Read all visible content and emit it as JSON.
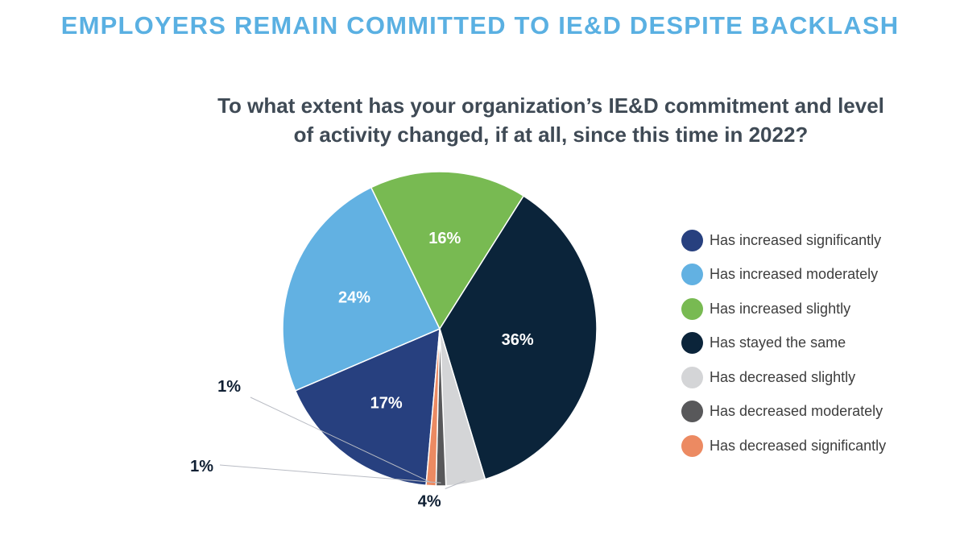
{
  "page": {
    "headline": "EMPLOYERS REMAIN COMMITTED TO IE&D DESPITE BACKLASH"
  },
  "chart_data": {
    "type": "pie",
    "title": "To what extent has your organization’s IE&D commitment and level of activity changed, if at all, since this time in 2022?",
    "title_lines": [
      "To what extent has your organization’s IE&D commitment and level",
      "of activity changed, if at all, since this time in 2022?"
    ],
    "legend_position": "right",
    "slices": [
      {
        "label": "Has increased significantly",
        "value": 17,
        "value_label": "17%",
        "color": "#27407f"
      },
      {
        "label": "Has increased moderately",
        "value": 24,
        "value_label": "24%",
        "color": "#62b1e2"
      },
      {
        "label": "Has increased slightly",
        "value": 16,
        "value_label": "16%",
        "color": "#78ba52"
      },
      {
        "label": "Has stayed the same",
        "value": 36,
        "value_label": "36%",
        "color": "#0b243a"
      },
      {
        "label": "Has decreased slightly",
        "value": 4,
        "value_label": "4%",
        "color": "#d4d5d7"
      },
      {
        "label": "Has decreased moderately",
        "value": 1,
        "value_label": "1%",
        "color": "#58585a"
      },
      {
        "label": "Has decreased significantly",
        "value": 1,
        "value_label": "1%",
        "color": "#ec8a62"
      }
    ]
  }
}
